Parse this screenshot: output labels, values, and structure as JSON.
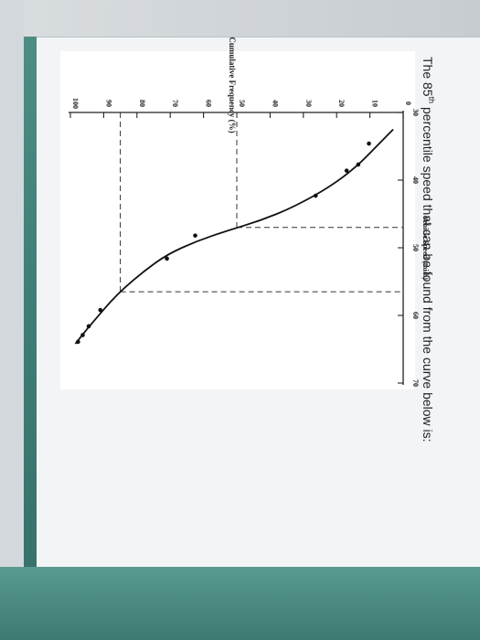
{
  "question": {
    "prefix": "The 85",
    "superscript": "th",
    "suffix": " percentile speed that can be found from the curve below is:"
  },
  "chart_data": {
    "type": "line",
    "xlabel": "Vehicle Speed (mi/h)",
    "ylabel": "Cumulative Frequency (%)",
    "xlim": [
      30,
      70
    ],
    "ylim": [
      0,
      100
    ],
    "xticks": [
      30,
      40,
      50,
      60,
      70
    ],
    "yticks": [
      0,
      10,
      20,
      30,
      40,
      50,
      60,
      70,
      80,
      90,
      100
    ],
    "grid": false,
    "points": [
      {
        "x": 34.6,
        "y": 10.3
      },
      {
        "x": 37.7,
        "y": 13.5
      },
      {
        "x": 38.6,
        "y": 17.0
      },
      {
        "x": 42.3,
        "y": 26.3
      },
      {
        "x": 48.2,
        "y": 62.5
      },
      {
        "x": 51.6,
        "y": 71.0
      },
      {
        "x": 59.2,
        "y": 91.0
      },
      {
        "x": 61.6,
        "y": 94.5
      },
      {
        "x": 62.9,
        "y": 96.3
      },
      {
        "x": 63.9,
        "y": 97.7
      }
    ],
    "curve": [
      {
        "x": 32.5,
        "y": 3
      },
      {
        "x": 35,
        "y": 8
      },
      {
        "x": 38,
        "y": 14
      },
      {
        "x": 41,
        "y": 22
      },
      {
        "x": 44,
        "y": 33
      },
      {
        "x": 46,
        "y": 43
      },
      {
        "x": 47.5,
        "y": 53
      },
      {
        "x": 49,
        "y": 62
      },
      {
        "x": 51,
        "y": 71
      },
      {
        "x": 53.5,
        "y": 78
      },
      {
        "x": 56,
        "y": 84
      },
      {
        "x": 58,
        "y": 88
      },
      {
        "x": 60,
        "y": 91.5
      },
      {
        "x": 62,
        "y": 95
      },
      {
        "x": 64.2,
        "y": 98.5
      }
    ],
    "reference_lines": [
      {
        "y": 85,
        "x": 56.5
      },
      {
        "y": 50,
        "x": 47
      }
    ]
  }
}
